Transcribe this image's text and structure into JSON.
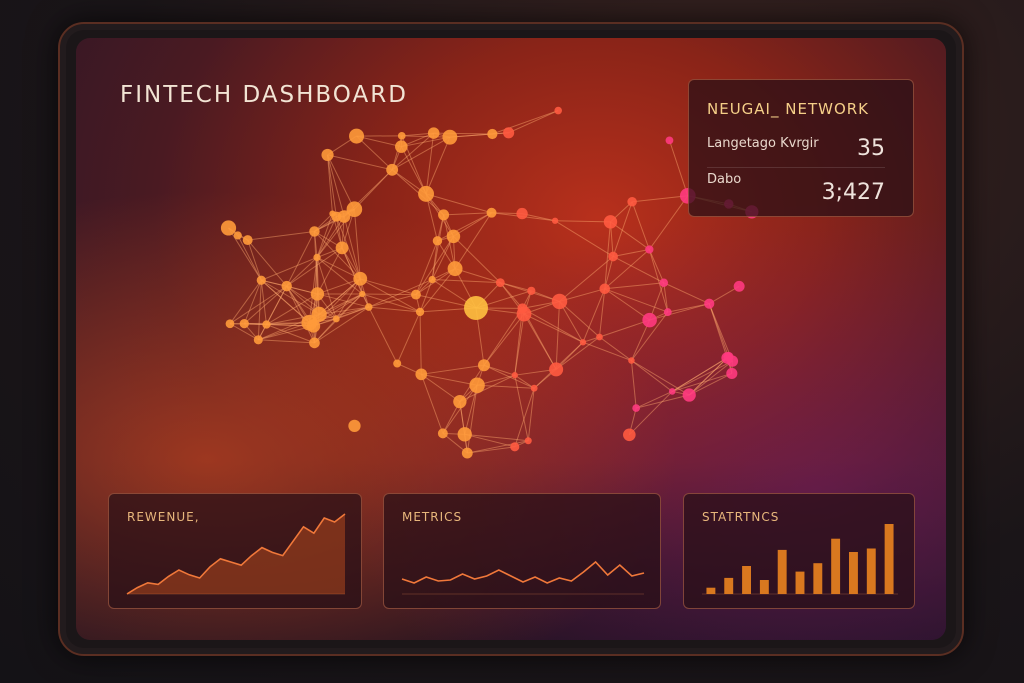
{
  "header": {
    "title": "FINTECH DASHBOARD"
  },
  "neural_card": {
    "title": "NEUGAI_ NETWORK",
    "rows": [
      {
        "label": "Langetago Kvrgir",
        "value": "35"
      },
      {
        "label": "Dabo",
        "value": "3;427"
      }
    ]
  },
  "colors": {
    "accent": "#f08a3a",
    "bar": "#d9781f",
    "line": "#f0783a"
  },
  "cards": [
    {
      "title": "REWENUE,",
      "type": "area",
      "values": [
        0,
        8,
        14,
        12,
        22,
        30,
        24,
        20,
        34,
        44,
        40,
        36,
        48,
        58,
        52,
        48,
        66,
        84,
        76,
        95,
        90,
        100
      ]
    },
    {
      "title": "METRICS",
      "type": "line",
      "values": [
        30,
        22,
        34,
        26,
        28,
        40,
        30,
        36,
        48,
        36,
        24,
        34,
        22,
        32,
        26,
        44,
        64,
        38,
        58,
        36,
        42
      ]
    },
    {
      "title": "STATRTNCS",
      "type": "bar",
      "values": [
        9,
        23,
        40,
        20,
        63,
        32,
        44,
        79,
        60,
        65,
        100
      ]
    }
  ]
}
